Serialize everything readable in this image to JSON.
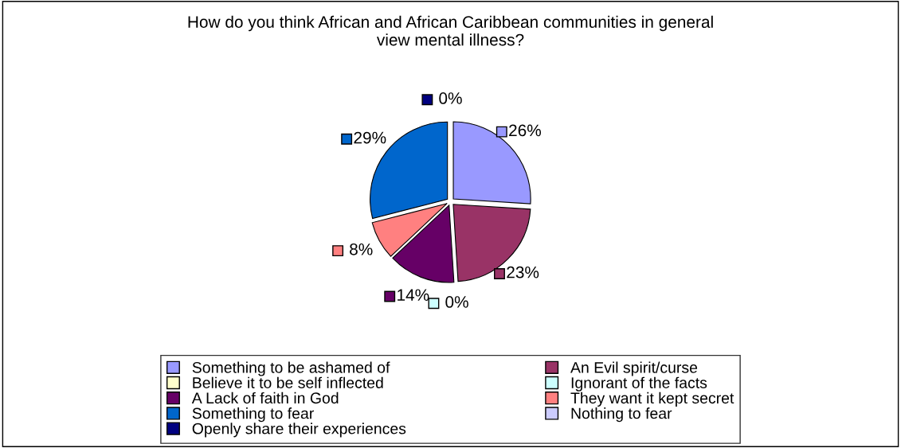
{
  "chart_data": {
    "type": "pie",
    "title": "How do you think African and African Caribbean communities in general\nview mental illness?",
    "categories": [
      "Something to be ashamed of",
      "An Evil spirit/curse",
      "Believe it to be self inflected",
      "Ignorant of the facts",
      "A Lack of faith in God",
      "They want it kept secret",
      "Something to fear",
      "Nothing to fear",
      "Openly share their experiences"
    ],
    "values": [
      26,
      23,
      0,
      0,
      14,
      8,
      29,
      0,
      0
    ],
    "value_labels": [
      "26%",
      "23%",
      null,
      "0%",
      "14%",
      "8%",
      "29%",
      null,
      "0%"
    ],
    "colors": [
      "#9999ff",
      "#993366",
      "#ffffcc",
      "#ccffff",
      "#660066",
      "#ff8080",
      "#0066cc",
      "#ccccff",
      "#000080"
    ],
    "legend": "bottom"
  }
}
